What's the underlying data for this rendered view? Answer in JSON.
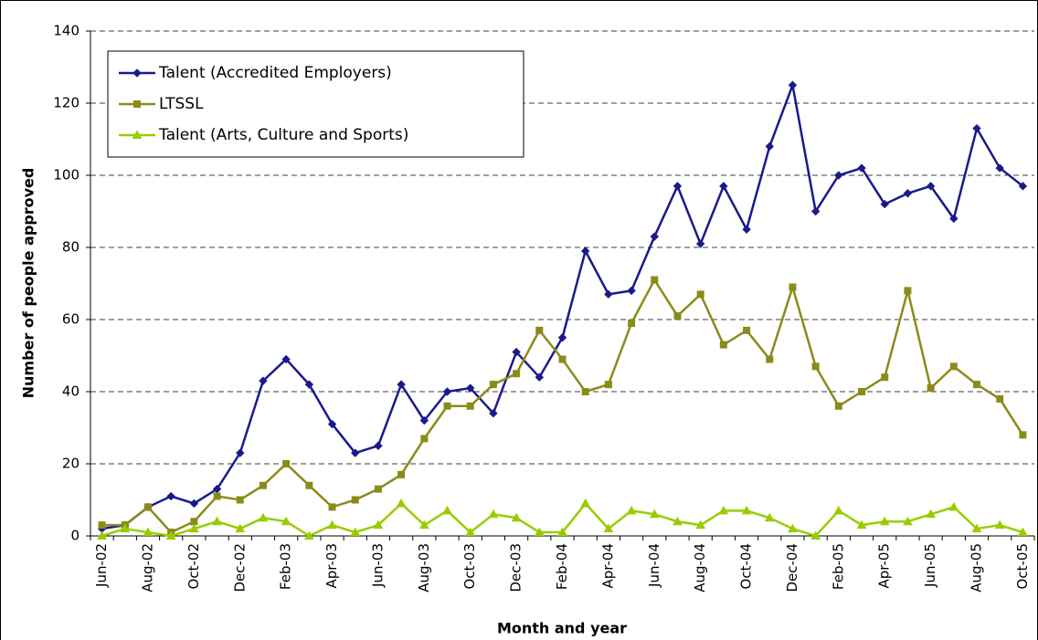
{
  "chart_data": {
    "type": "line",
    "x_label": "Month and year",
    "y_label": "Number of people approved",
    "categories": [
      "Jun-02",
      null,
      "Aug-02",
      null,
      "Oct-02",
      null,
      "Dec-02",
      null,
      "Feb-03",
      null,
      "Apr-03",
      null,
      "Jun-03",
      null,
      "Aug-03",
      null,
      "Oct-03",
      null,
      "Dec-03",
      null,
      "Feb-04",
      null,
      "Apr-04",
      null,
      "Jun-04",
      null,
      "Aug-04",
      null,
      "Oct-04",
      null,
      "Dec-04",
      null,
      "Feb-05",
      null,
      "Apr-05",
      null,
      "Jun-05",
      null,
      "Aug-05",
      null,
      "Oct-05"
    ],
    "series": [
      {
        "name": "Talent (Accredited Employers)",
        "color": "#1a1a8c",
        "marker": "diamond",
        "values": [
          2,
          3,
          8,
          11,
          9,
          13,
          23,
          43,
          49,
          42,
          31,
          23,
          25,
          42,
          32,
          40,
          41,
          34,
          51,
          44,
          55,
          79,
          67,
          68,
          83,
          97,
          81,
          97,
          85,
          108,
          125,
          90,
          100,
          102,
          92,
          95,
          97,
          88,
          113,
          102,
          97
        ]
      },
      {
        "name": "LTSSL",
        "color": "#8b8b1a",
        "marker": "square",
        "values": [
          3,
          3,
          8,
          1,
          4,
          11,
          10,
          14,
          20,
          14,
          8,
          10,
          13,
          17,
          27,
          36,
          36,
          42,
          45,
          57,
          49,
          40,
          42,
          59,
          71,
          61,
          67,
          53,
          57,
          49,
          69,
          47,
          36,
          40,
          44,
          68,
          41,
          47,
          42,
          38,
          28
        ]
      },
      {
        "name": "Talent (Arts, Culture and Sports)",
        "color": "#99cc00",
        "marker": "triangle",
        "values": [
          0,
          2,
          1,
          0,
          2,
          4,
          2,
          5,
          4,
          0,
          3,
          1,
          3,
          9,
          3,
          7,
          1,
          6,
          5,
          1,
          1,
          9,
          2,
          7,
          6,
          4,
          3,
          7,
          7,
          5,
          2,
          0,
          7,
          3,
          4,
          4,
          6,
          8,
          2,
          3,
          1
        ]
      }
    ],
    "ylim": [
      0,
      140
    ],
    "yticks": [
      0,
      20,
      40,
      60,
      80,
      100,
      120,
      140
    ],
    "grid": true,
    "legend": "top-left"
  }
}
